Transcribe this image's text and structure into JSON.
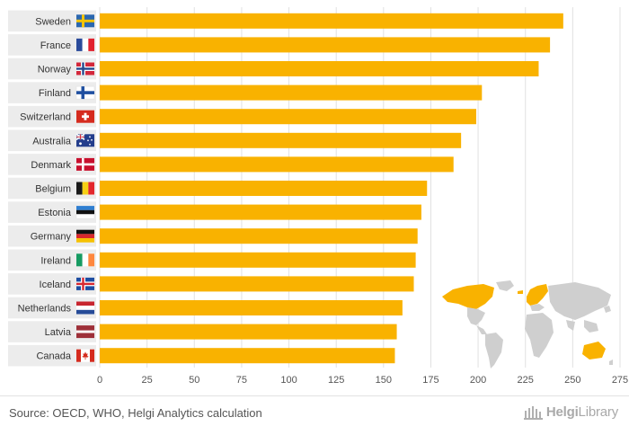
{
  "chart_data": {
    "type": "bar",
    "orientation": "horizontal",
    "categories": [
      "Sweden",
      "France",
      "Norway",
      "Finland",
      "Switzerland",
      "Australia",
      "Denmark",
      "Belgium",
      "Estonia",
      "Germany",
      "Ireland",
      "Iceland",
      "Netherlands",
      "Latvia",
      "Canada"
    ],
    "values": [
      245,
      238,
      232,
      202,
      199,
      191,
      187,
      173,
      170,
      168,
      167,
      166,
      160,
      157,
      156
    ],
    "xlim": [
      0,
      275
    ],
    "xticks": [
      "0",
      "25",
      "50",
      "75",
      "100",
      "125",
      "150",
      "175",
      "200",
      "225",
      "250",
      "275"
    ],
    "grid": true,
    "title": "",
    "xlabel": "",
    "ylabel": "",
    "colors": {
      "bar": "#f9b200",
      "label_bg": "#ececec",
      "grid": "#e1e1e1",
      "map_land": "#cfcfcf",
      "map_highlight": "#f9b200"
    }
  },
  "flags": [
    "flag-sweden-icon",
    "flag-france-icon",
    "flag-norway-icon",
    "flag-finland-icon",
    "flag-switzerland-icon",
    "flag-australia-icon",
    "flag-denmark-icon",
    "flag-belgium-icon",
    "flag-estonia-icon",
    "flag-germany-icon",
    "flag-ireland-icon",
    "flag-iceland-icon",
    "flag-netherlands-icon",
    "flag-latvia-icon",
    "flag-canada-icon"
  ],
  "footer": {
    "source": "Source: OECD, WHO, Helgi Analytics calculation",
    "brand_bold": "Helgi",
    "brand_light": "Library"
  }
}
